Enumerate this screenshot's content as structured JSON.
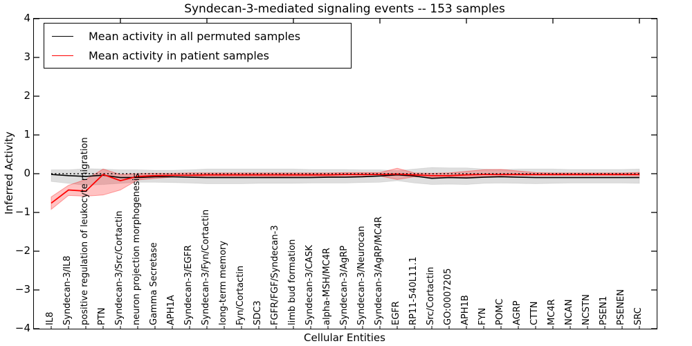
{
  "chart_data": {
    "type": "line",
    "title": "Syndecan-3-mediated signaling events -- 153 samples",
    "xlabel": "Cellular Entities",
    "ylabel": "Inferred Activity",
    "ylim": [
      -4,
      4
    ],
    "grid": false,
    "legend_position": "upper left",
    "zero_line_style": "dotted",
    "ytick_values": [
      4,
      3,
      2,
      1,
      0,
      -1,
      -2,
      -3,
      -4
    ],
    "ytick_labels": [
      "4",
      "3",
      "2",
      "1",
      "0",
      "−1",
      "−2",
      "−3",
      "−4"
    ],
    "top_tick_indices": [
      4,
      9,
      14,
      19,
      24,
      29,
      34
    ],
    "categories": [
      "IL8",
      "Syndecan-3/IL8",
      "positive regulation of leukocyte migration",
      "PTN",
      "Syndecan-3/Src/Cortactin",
      "neuron projection morphogenesis",
      "Gamma Secretase",
      "APH1A",
      "Syndecan-3/EGFR",
      "Syndecan-3/Fyn/Cortactin",
      "long-term memory",
      "Fyn/Cortactin",
      "SDC3",
      "FGFR/FGF/Syndecan-3",
      "limb bud formation",
      "Syndecan-3/CASK",
      "alpha-MSH/MC4R",
      "Syndecan-3/AgRP",
      "Syndecan-3/Neurocan",
      "Syndecan-3/AgRP/MC4R",
      "EGFR",
      "RP11-540L11.1",
      "Src/Cortactin",
      "GO:0007205",
      "APH1B",
      "FYN",
      "POMC",
      "AGRP",
      "CTTN",
      "MC4R",
      "NCAN",
      "NCSTN",
      "PSEN1",
      "PSENEN",
      "SRC"
    ],
    "series": [
      {
        "name": "Mean activity in all permuted samples",
        "color": "#000000",
        "band_color": "rgba(0,0,0,0.13)",
        "line_width": 1.6,
        "values": [
          -0.02,
          -0.05,
          -0.07,
          -0.04,
          -0.1,
          -0.1,
          -0.08,
          -0.08,
          -0.09,
          -0.1,
          -0.1,
          -0.1,
          -0.1,
          -0.1,
          -0.1,
          -0.1,
          -0.09,
          -0.09,
          -0.08,
          -0.06,
          -0.03,
          -0.06,
          -0.12,
          -0.1,
          -0.11,
          -0.09,
          -0.08,
          -0.09,
          -0.1,
          -0.1,
          -0.1,
          -0.1,
          -0.1,
          -0.1,
          -0.1
        ],
        "band_upper": [
          0.1,
          0.1,
          0.13,
          0.12,
          0.1,
          0.1,
          0.09,
          0.09,
          0.1,
          0.12,
          0.12,
          0.12,
          0.12,
          0.12,
          0.12,
          0.11,
          0.11,
          0.11,
          0.1,
          0.1,
          0.08,
          0.12,
          0.16,
          0.15,
          0.15,
          0.12,
          0.11,
          0.12,
          0.12,
          0.12,
          0.11,
          0.11,
          0.11,
          0.11,
          0.12
        ],
        "band_lower": [
          -0.2,
          -0.25,
          -0.3,
          -0.28,
          -0.25,
          -0.22,
          -0.22,
          -0.23,
          -0.24,
          -0.26,
          -0.26,
          -0.26,
          -0.25,
          -0.25,
          -0.25,
          -0.24,
          -0.24,
          -0.24,
          -0.23,
          -0.22,
          -0.18,
          -0.24,
          -0.28,
          -0.27,
          -0.28,
          -0.25,
          -0.24,
          -0.25,
          -0.26,
          -0.25,
          -0.24,
          -0.24,
          -0.24,
          -0.24,
          -0.25
        ]
      },
      {
        "name": "Mean activity in patient samples",
        "color": "#ff0000",
        "band_color": "rgba(255,0,0,0.24)",
        "line_width": 1.8,
        "values": [
          -0.76,
          -0.42,
          -0.45,
          -0.02,
          -0.18,
          -0.07,
          -0.05,
          -0.04,
          -0.04,
          -0.03,
          -0.03,
          -0.03,
          -0.03,
          -0.03,
          -0.03,
          -0.03,
          -0.03,
          -0.02,
          -0.02,
          -0.02,
          -0.01,
          -0.03,
          -0.05,
          -0.05,
          -0.03,
          -0.02,
          -0.02,
          -0.02,
          -0.02,
          -0.02,
          -0.02,
          -0.02,
          -0.02,
          -0.02,
          -0.02
        ],
        "band_upper": [
          -0.6,
          -0.3,
          -0.15,
          0.12,
          -0.02,
          0.0,
          0.01,
          0.01,
          0.02,
          0.02,
          0.02,
          0.02,
          0.02,
          0.02,
          0.02,
          0.02,
          0.02,
          0.03,
          0.03,
          0.03,
          0.14,
          0.02,
          0.01,
          0.02,
          0.06,
          0.1,
          0.11,
          0.07,
          0.03,
          0.02,
          0.02,
          0.02,
          0.02,
          0.02,
          0.03
        ],
        "band_lower": [
          -0.92,
          -0.56,
          -0.58,
          -0.55,
          -0.42,
          -0.16,
          -0.12,
          -0.09,
          -0.08,
          -0.07,
          -0.07,
          -0.07,
          -0.07,
          -0.08,
          -0.07,
          -0.07,
          -0.07,
          -0.06,
          -0.06,
          -0.06,
          -0.15,
          -0.08,
          -0.1,
          -0.09,
          -0.09,
          -0.08,
          -0.06,
          -0.05,
          -0.05,
          -0.05,
          -0.05,
          -0.05,
          -0.05,
          -0.05,
          -0.06
        ]
      }
    ]
  }
}
